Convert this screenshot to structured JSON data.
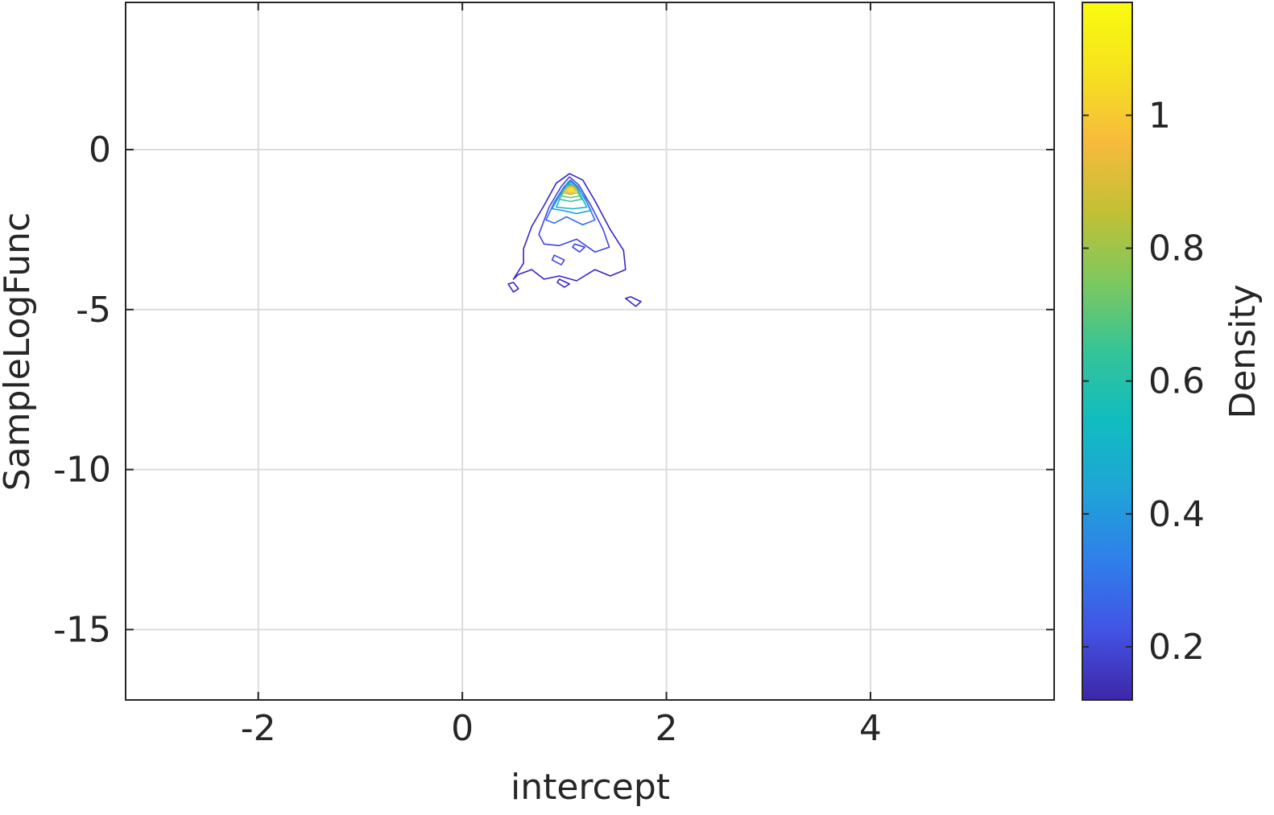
{
  "chart_data": {
    "type": "contour",
    "xlabel": "intercept",
    "ylabel": "SampleLogFunc",
    "xlim": [
      -3.3,
      5.8
    ],
    "ylim": [
      -17.2,
      4.6
    ],
    "xticks": [
      -2,
      0,
      2,
      4
    ],
    "yticks": [
      0,
      -5,
      -10,
      -15
    ],
    "xtick_labels": [
      "-2",
      "0",
      "2",
      "4"
    ],
    "ytick_labels": [
      "0",
      "-5",
      "-10",
      "-15"
    ],
    "grid": true,
    "colorbar": {
      "label": "Density",
      "range": [
        0.12,
        1.17
      ],
      "ticks": [
        0.2,
        0.4,
        0.6,
        0.8,
        1
      ],
      "tick_labels": [
        "0.2",
        "0.4",
        "0.6",
        "0.8",
        "1"
      ],
      "colormap": [
        "#3e26a8",
        "#4254e5",
        "#2f7fea",
        "#1fa4d7",
        "#10bcc0",
        "#35c496",
        "#7ec85e",
        "#c2c036",
        "#f7ba3c",
        "#f5e21f",
        "#f9fb0e"
      ]
    },
    "contours": [
      {
        "level": 0.15,
        "color": "#3626c7",
        "points": [
          [
            0.5,
            -4.05
          ],
          [
            0.6,
            -3.55
          ],
          [
            0.6,
            -3.1
          ],
          [
            0.68,
            -2.4
          ],
          [
            0.8,
            -1.75
          ],
          [
            0.92,
            -1.05
          ],
          [
            1.05,
            -0.75
          ],
          [
            1.18,
            -0.95
          ],
          [
            1.3,
            -1.6
          ],
          [
            1.45,
            -2.5
          ],
          [
            1.58,
            -3.15
          ],
          [
            1.6,
            -3.75
          ],
          [
            1.45,
            -3.95
          ],
          [
            1.3,
            -3.75
          ],
          [
            1.12,
            -4.1
          ],
          [
            0.95,
            -3.95
          ],
          [
            0.8,
            -4.05
          ],
          [
            0.68,
            -3.75
          ],
          [
            0.55,
            -3.9
          ]
        ]
      },
      {
        "level": 0.15,
        "color": "#3626c7",
        "points": [
          [
            0.45,
            -4.2
          ],
          [
            0.5,
            -4.45
          ],
          [
            0.55,
            -4.35
          ],
          [
            0.5,
            -4.15
          ]
        ]
      },
      {
        "level": 0.15,
        "color": "#3626c7",
        "points": [
          [
            1.6,
            -4.65
          ],
          [
            1.7,
            -4.9
          ],
          [
            1.75,
            -4.75
          ],
          [
            1.65,
            -4.6
          ]
        ]
      },
      {
        "level": 0.15,
        "color": "#3626c7",
        "points": [
          [
            0.95,
            -4.05
          ],
          [
            1.05,
            -4.2
          ],
          [
            1.0,
            -4.3
          ],
          [
            0.93,
            -4.15
          ]
        ]
      },
      {
        "level": 0.25,
        "color": "#4145e0",
        "points": [
          [
            0.75,
            -2.65
          ],
          [
            0.85,
            -1.8
          ],
          [
            0.97,
            -1.15
          ],
          [
            1.05,
            -0.85
          ],
          [
            1.14,
            -1.1
          ],
          [
            1.26,
            -1.75
          ],
          [
            1.38,
            -2.5
          ],
          [
            1.44,
            -3.05
          ],
          [
            1.3,
            -3.2
          ],
          [
            1.12,
            -2.8
          ],
          [
            0.95,
            -3.0
          ],
          [
            0.8,
            -2.95
          ]
        ]
      },
      {
        "level": 0.25,
        "color": "#4145e0",
        "points": [
          [
            0.9,
            -3.3
          ],
          [
            1.0,
            -3.45
          ],
          [
            0.97,
            -3.6
          ],
          [
            0.88,
            -3.45
          ]
        ]
      },
      {
        "level": 0.25,
        "color": "#4145e0",
        "points": [
          [
            1.1,
            -2.95
          ],
          [
            1.2,
            -3.05
          ],
          [
            1.15,
            -3.2
          ],
          [
            1.08,
            -3.05
          ]
        ]
      },
      {
        "level": 0.35,
        "color": "#2f6ff0",
        "points": [
          [
            0.82,
            -2.2
          ],
          [
            0.9,
            -1.65
          ],
          [
            1.0,
            -1.15
          ],
          [
            1.06,
            -0.95
          ],
          [
            1.13,
            -1.15
          ],
          [
            1.22,
            -1.65
          ],
          [
            1.3,
            -2.2
          ],
          [
            1.18,
            -2.35
          ],
          [
            1.02,
            -2.1
          ],
          [
            0.9,
            -2.3
          ]
        ]
      },
      {
        "level": 0.45,
        "color": "#2298e0",
        "points": [
          [
            0.88,
            -1.85
          ],
          [
            0.95,
            -1.45
          ],
          [
            1.02,
            -1.1
          ],
          [
            1.06,
            -1.0
          ],
          [
            1.12,
            -1.15
          ],
          [
            1.2,
            -1.5
          ],
          [
            1.26,
            -1.9
          ],
          [
            1.12,
            -2.0
          ],
          [
            0.98,
            -1.9
          ]
        ]
      },
      {
        "level": 0.55,
        "color": "#12b2cc",
        "points": [
          [
            0.92,
            -1.8
          ],
          [
            0.98,
            -1.35
          ],
          [
            1.05,
            -1.05
          ],
          [
            1.12,
            -1.2
          ],
          [
            1.18,
            -1.55
          ],
          [
            1.22,
            -1.8
          ],
          [
            1.08,
            -1.85
          ]
        ]
      },
      {
        "level": 0.65,
        "color": "#2bc29e",
        "points": [
          [
            0.95,
            -1.55
          ],
          [
            1.0,
            -1.25
          ],
          [
            1.06,
            -1.08
          ],
          [
            1.12,
            -1.25
          ],
          [
            1.17,
            -1.55
          ],
          [
            1.06,
            -1.62
          ]
        ]
      },
      {
        "level": 0.75,
        "color": "#6cc768",
        "points": [
          [
            0.97,
            -1.45
          ],
          [
            1.02,
            -1.2
          ],
          [
            1.06,
            -1.12
          ],
          [
            1.11,
            -1.22
          ],
          [
            1.15,
            -1.45
          ],
          [
            1.06,
            -1.5
          ]
        ]
      },
      {
        "level": 0.85,
        "color": "#b4c33a",
        "points": [
          [
            0.99,
            -1.35
          ],
          [
            1.03,
            -1.18
          ],
          [
            1.07,
            -1.14
          ],
          [
            1.11,
            -1.2
          ],
          [
            1.13,
            -1.35
          ],
          [
            1.06,
            -1.4
          ]
        ]
      },
      {
        "level": 0.95,
        "color": "#e7bb36",
        "points": [
          [
            1.0,
            -1.3
          ],
          [
            1.04,
            -1.17
          ],
          [
            1.08,
            -1.16
          ],
          [
            1.11,
            -1.24
          ],
          [
            1.1,
            -1.33
          ],
          [
            1.05,
            -1.36
          ]
        ]
      },
      {
        "level": 1.05,
        "color": "#fbc731",
        "points": [
          [
            1.02,
            -1.27
          ],
          [
            1.05,
            -1.19
          ],
          [
            1.08,
            -1.19
          ],
          [
            1.1,
            -1.25
          ],
          [
            1.07,
            -1.3
          ],
          [
            1.04,
            -1.3
          ]
        ]
      },
      {
        "level": 1.12,
        "color": "#f4e325",
        "points": [
          [
            1.04,
            -1.25
          ],
          [
            1.06,
            -1.21
          ],
          [
            1.08,
            -1.22
          ],
          [
            1.08,
            -1.26
          ],
          [
            1.06,
            -1.27
          ]
        ]
      }
    ]
  }
}
